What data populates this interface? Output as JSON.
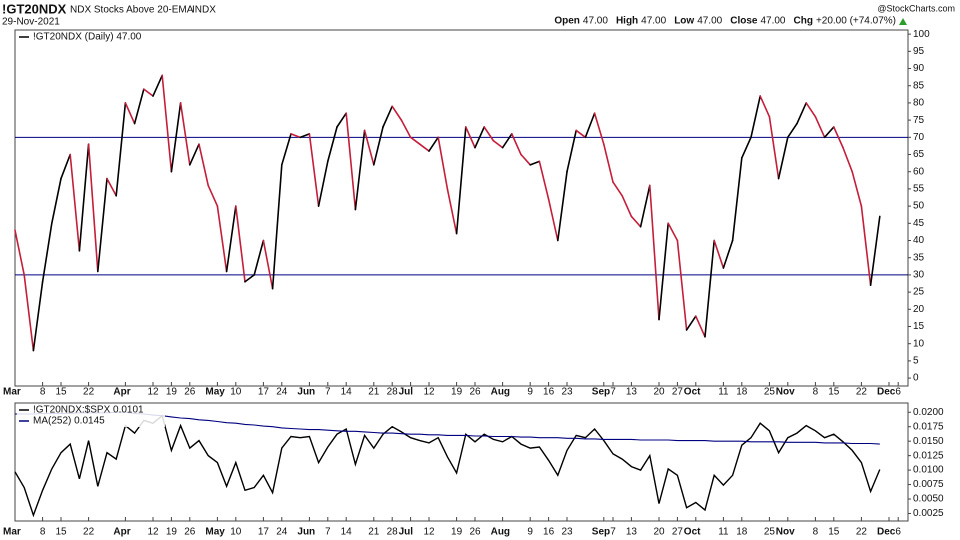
{
  "chart_data": [
    {
      "type": "line",
      "title": "!GT20NDX",
      "subtitle": "NDX Stocks Above 20-EMA",
      "exchange": "INDX",
      "date": "29-Nov-2021",
      "quote": [
        {
          "label": "Open",
          "value": "47.00"
        },
        {
          "label": "High",
          "value": "47.00"
        },
        {
          "label": "Low",
          "value": "47.00"
        },
        {
          "label": "Close",
          "value": "47.00"
        },
        {
          "label": "Chg",
          "value": "+20.00 (+74.07%)"
        }
      ],
      "watermark": "@StockCharts.com",
      "categories": [
        "Mar",
        null,
        null,
        "8",
        null,
        "15",
        null,
        null,
        "22",
        null,
        null,
        null,
        "Apr",
        null,
        null,
        "12",
        null,
        "19",
        null,
        "26",
        null,
        null,
        "May",
        null,
        "10",
        null,
        null,
        "17",
        null,
        "24",
        null,
        null,
        "Jun",
        null,
        "7",
        null,
        "14",
        null,
        null,
        "21",
        null,
        "28",
        null,
        "Jul",
        null,
        "12",
        null,
        null,
        "19",
        null,
        "26",
        null,
        null,
        "Aug",
        null,
        null,
        "9",
        null,
        "16",
        null,
        "23",
        null,
        null,
        null,
        "Sep",
        "7",
        null,
        "13",
        null,
        null,
        "20",
        null,
        "27",
        null,
        "Oct",
        null,
        null,
        "11",
        null,
        "18",
        null,
        null,
        "25",
        null,
        "Nov",
        null,
        null,
        "8",
        null,
        "15",
        null,
        null,
        "22",
        null,
        null,
        "Dec",
        "6",
        null
      ],
      "series": [
        {
          "name": "!GT20NDX (Daily) 47.00",
          "up_color": "#000000",
          "down_color": "#c41e3a",
          "values": [
            43,
            30,
            8,
            28,
            45,
            58,
            65,
            37,
            68,
            31,
            58,
            53,
            80,
            74,
            84,
            82,
            88,
            60,
            80,
            62,
            68,
            56,
            50,
            31,
            50,
            28,
            30,
            40,
            26,
            62,
            71,
            70,
            71,
            50,
            63,
            73,
            77,
            49,
            72,
            62,
            73,
            79,
            75,
            70,
            68,
            66,
            70,
            55,
            42,
            73,
            67,
            73,
            69,
            67,
            71,
            65,
            62,
            63,
            52,
            40,
            60,
            72,
            70,
            77,
            68,
            57,
            53,
            47,
            44,
            56,
            17,
            45,
            40,
            14,
            18,
            12,
            40,
            32,
            40,
            64,
            70,
            82,
            76,
            58,
            70,
            74,
            80,
            76,
            70,
            73,
            67,
            60,
            50,
            27,
            47,
            null,
            null,
            null
          ]
        }
      ],
      "hlines": [
        70,
        30
      ],
      "hline_color": "#000080",
      "ylim": [
        -2.3,
        101.2
      ],
      "yticks": [
        0,
        5,
        10,
        15,
        20,
        25,
        30,
        35,
        40,
        45,
        50,
        55,
        60,
        65,
        70,
        75,
        80,
        85,
        90,
        95,
        100
      ]
    },
    {
      "type": "line",
      "categories": [
        "Mar",
        null,
        null,
        "8",
        null,
        "15",
        null,
        null,
        "22",
        null,
        null,
        null,
        "Apr",
        null,
        null,
        "12",
        null,
        "19",
        null,
        "26",
        null,
        null,
        "May",
        null,
        "10",
        null,
        null,
        "17",
        null,
        "24",
        null,
        null,
        "Jun",
        null,
        "7",
        null,
        "14",
        null,
        null,
        "21",
        null,
        "28",
        null,
        "Jul",
        null,
        "12",
        null,
        null,
        "19",
        null,
        "26",
        null,
        null,
        "Aug",
        null,
        null,
        "9",
        null,
        "16",
        null,
        "23",
        null,
        null,
        null,
        "Sep",
        "7",
        null,
        "13",
        null,
        null,
        "20",
        null,
        "27",
        null,
        "Oct",
        null,
        null,
        "11",
        null,
        "18",
        null,
        null,
        "25",
        null,
        "Nov",
        null,
        null,
        "8",
        null,
        "15",
        null,
        null,
        "22",
        null,
        null,
        "Dec",
        "6",
        null
      ],
      "series": [
        {
          "name": "!GT20NDX:$SPX 0.0101",
          "color": "#000000",
          "values": [
            0.0097,
            0.007,
            0.0022,
            0.0065,
            0.0102,
            0.013,
            0.0145,
            0.0085,
            0.0151,
            0.0072,
            0.013,
            0.0119,
            0.0177,
            0.0164,
            0.0186,
            0.0181,
            0.0194,
            0.0134,
            0.0177,
            0.0138,
            0.0151,
            0.0125,
            0.0113,
            0.0072,
            0.0113,
            0.0065,
            0.007,
            0.0091,
            0.0061,
            0.0138,
            0.0158,
            0.0156,
            0.0158,
            0.0113,
            0.014,
            0.0162,
            0.0171,
            0.011,
            0.016,
            0.0138,
            0.0162,
            0.0175,
            0.0166,
            0.0156,
            0.0151,
            0.0147,
            0.0156,
            0.0123,
            0.0095,
            0.0162,
            0.0149,
            0.0162,
            0.0153,
            0.0149,
            0.0158,
            0.0145,
            0.0138,
            0.014,
            0.0117,
            0.0091,
            0.0134,
            0.016,
            0.0156,
            0.0171,
            0.0151,
            0.0128,
            0.0119,
            0.0106,
            0.01,
            0.0125,
            0.0042,
            0.0102,
            0.0091,
            0.0035,
            0.0044,
            0.0031,
            0.0091,
            0.0074,
            0.0091,
            0.0143,
            0.0156,
            0.0181,
            0.0168,
            0.013,
            0.0156,
            0.0164,
            0.0177,
            0.0168,
            0.0156,
            0.0162,
            0.0149,
            0.0134,
            0.0113,
            0.0063,
            0.0101,
            null,
            null,
            null
          ]
        },
        {
          "name": "MA(252) 0.0145",
          "color": "#000080",
          "values": [
            0.0197,
            0.0197,
            0.0197,
            0.0198,
            0.0198,
            0.0198,
            0.0198,
            0.0199,
            0.0199,
            0.0199,
            0.0199,
            0.02,
            0.02,
            0.0198,
            0.0197,
            0.0195,
            0.0194,
            0.0192,
            0.019,
            0.0189,
            0.0187,
            0.0186,
            0.0184,
            0.0182,
            0.0181,
            0.0179,
            0.0178,
            0.0176,
            0.0175,
            0.0173,
            0.0172,
            0.0171,
            0.017,
            0.017,
            0.0169,
            0.0168,
            0.0167,
            0.0167,
            0.0166,
            0.0165,
            0.0164,
            0.0164,
            0.0163,
            0.0162,
            0.0162,
            0.0161,
            0.0161,
            0.016,
            0.016,
            0.016,
            0.0159,
            0.0159,
            0.0158,
            0.0158,
            0.0158,
            0.0157,
            0.0157,
            0.0156,
            0.0156,
            0.0156,
            0.0155,
            0.0155,
            0.0154,
            0.0154,
            0.0153,
            0.0153,
            0.0153,
            0.0153,
            0.0152,
            0.0152,
            0.0152,
            0.0152,
            0.0151,
            0.0151,
            0.0151,
            0.0151,
            0.015,
            0.015,
            0.015,
            0.015,
            0.0149,
            0.0149,
            0.0149,
            0.0149,
            0.0148,
            0.0148,
            0.0148,
            0.0148,
            0.0147,
            0.0147,
            0.0147,
            0.0146,
            0.0146,
            0.0146,
            0.0145,
            null,
            null,
            null
          ]
        }
      ],
      "ylim": [
        0.0012,
        0.0216
      ],
      "yticks": [
        0.0025,
        {
          "value": 0.005,
          "label": "0.0050"
        },
        0.0075,
        {
          "value": 0.01,
          "label": "0.0100"
        },
        0.0125,
        {
          "value": 0.015,
          "label": "0.0150"
        },
        0.0175,
        {
          "value": 0.02,
          "label": "0.0200"
        }
      ]
    }
  ]
}
